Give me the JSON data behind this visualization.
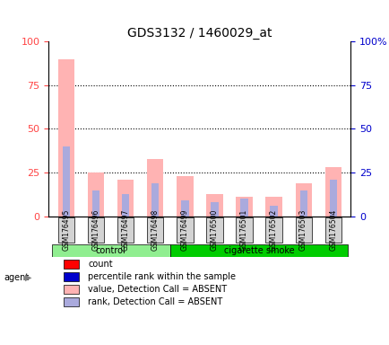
{
  "title": "GDS3132 / 1460029_at",
  "samples": [
    "GSM176495",
    "GSM176496",
    "GSM176497",
    "GSM176498",
    "GSM176499",
    "GSM176500",
    "GSM176501",
    "GSM176502",
    "GSM176503",
    "GSM176504"
  ],
  "groups": [
    "control",
    "control",
    "control",
    "control",
    "cigarette smoke",
    "cigarette smoke",
    "cigarette smoke",
    "cigarette smoke",
    "cigarette smoke",
    "cigarette smoke"
  ],
  "pink_values": [
    90,
    25,
    21,
    33,
    23,
    13,
    11,
    11,
    19,
    28
  ],
  "blue_values": [
    40,
    15,
    13,
    19,
    9,
    8,
    10,
    6,
    15,
    21
  ],
  "pink_color": "#FFB3B3",
  "blue_color": "#AAAADD",
  "red_color": "#FF0000",
  "dark_blue_color": "#0000CC",
  "ylim": [
    0,
    100
  ],
  "yticks": [
    0,
    25,
    50,
    75,
    100
  ],
  "ytick_labels_left": [
    "0",
    "25",
    "50",
    "75",
    "100"
  ],
  "ytick_labels_right": [
    "0",
    "25",
    "50",
    "75",
    "100%"
  ],
  "grid_color": "black",
  "bg_color": "#FFFFFF",
  "plot_bg": "#FFFFFF",
  "control_group_color": "#90EE90",
  "smoke_group_color": "#00CC00",
  "label_area_color": "#CCCCCC",
  "agent_label": "agent",
  "control_label": "control",
  "smoke_label": "cigarette smoke",
  "legend_items": [
    {
      "color": "#FF0000",
      "label": "count"
    },
    {
      "color": "#0000CC",
      "label": "percentile rank within the sample"
    },
    {
      "color": "#FFB3B3",
      "label": "value, Detection Call = ABSENT"
    },
    {
      "color": "#AAAADD",
      "label": "rank, Detection Call = ABSENT"
    }
  ]
}
